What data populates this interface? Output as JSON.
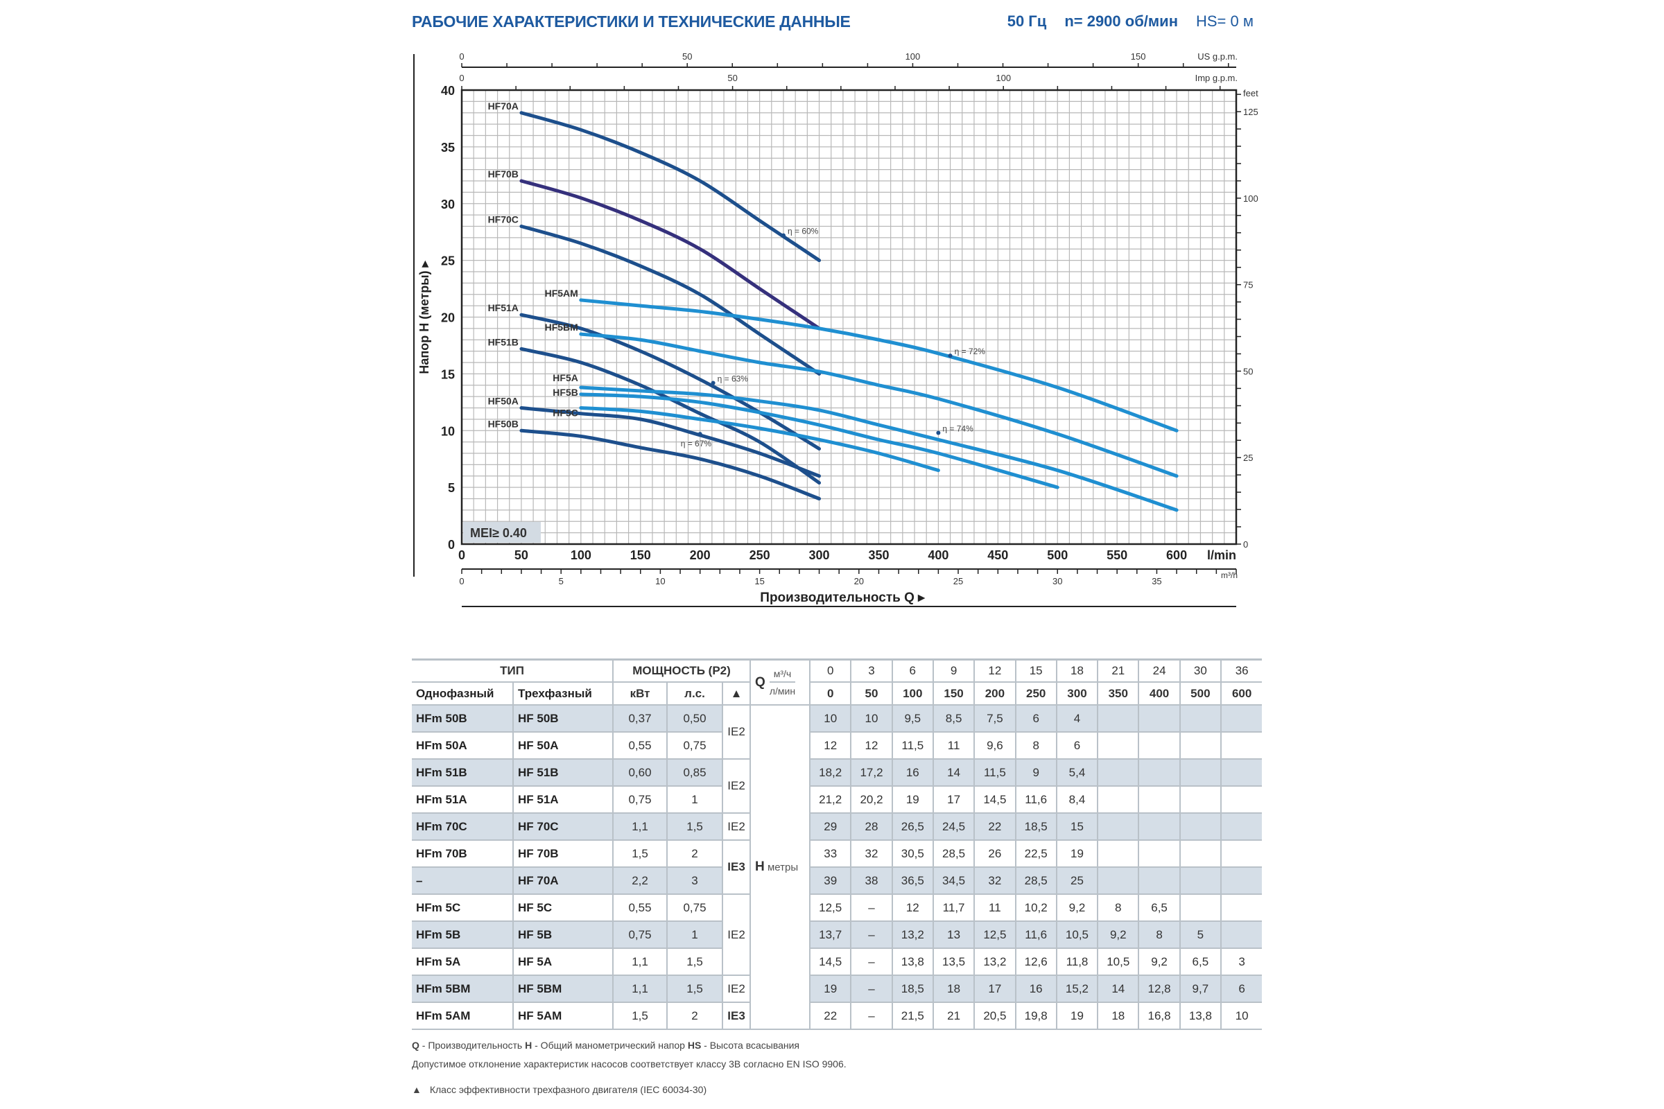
{
  "header": {
    "title": "РАБОЧИЕ ХАРАКТЕРИСТИКИ И ТЕХНИЧЕСКИЕ ДАННЫЕ",
    "frequency": "50 Гц",
    "speed": "n= 2900 об/мин",
    "suction": "HS= 0 м"
  },
  "chart_data": {
    "type": "line",
    "xlabel": "Производительность Q",
    "ylabel": "Напор H (метры)",
    "x_unit": "l/min",
    "xlim": [
      0,
      650
    ],
    "ylim": [
      0,
      40
    ],
    "grid": true,
    "x_ticks": [
      0,
      50,
      100,
      150,
      200,
      250,
      300,
      350,
      400,
      450,
      500,
      550,
      600
    ],
    "y_ticks": [
      0,
      5,
      10,
      15,
      20,
      25,
      30,
      35,
      40
    ],
    "secondary_axes": {
      "us_gpm": {
        "label": "US g.p.m.",
        "ticks": [
          0,
          50,
          100,
          150
        ]
      },
      "imp_gpm": {
        "label": "Imp g.p.m.",
        "ticks": [
          0,
          50,
          100
        ]
      },
      "m3h": {
        "label": "m³/h",
        "ticks": [
          0,
          5,
          10,
          15,
          20,
          25,
          30,
          35
        ]
      },
      "feet": {
        "label": "feet",
        "ticks": [
          0,
          25,
          50,
          75,
          100,
          125
        ]
      }
    },
    "badge": "MEI≥ 0.40",
    "colors": {
      "dark": "#1d4f8c",
      "purple": "#35307c",
      "light": "#1f8fd1"
    },
    "series": [
      {
        "name": "HF70A",
        "color": "#1d4f8c",
        "x": [
          50,
          100,
          150,
          200,
          250,
          300
        ],
        "y": [
          38,
          36.5,
          34.5,
          32,
          28.5,
          25
        ]
      },
      {
        "name": "HF70B",
        "color": "#35307c",
        "x": [
          50,
          100,
          150,
          200,
          250,
          300
        ],
        "y": [
          32,
          30.5,
          28.5,
          26,
          22.5,
          19
        ]
      },
      {
        "name": "HF70C",
        "color": "#1d4f8c",
        "x": [
          50,
          100,
          150,
          200,
          250,
          300
        ],
        "y": [
          28,
          26.5,
          24.5,
          22,
          18.5,
          15
        ]
      },
      {
        "name": "HF51A",
        "color": "#1d4f8c",
        "x": [
          50,
          100,
          150,
          200,
          250,
          300
        ],
        "y": [
          20.2,
          19,
          17,
          14.5,
          11.6,
          8.4
        ]
      },
      {
        "name": "HF51B",
        "color": "#1d4f8c",
        "x": [
          50,
          100,
          150,
          200,
          250,
          300
        ],
        "y": [
          17.2,
          16,
          14,
          11.5,
          9,
          5.4
        ]
      },
      {
        "name": "HF50A",
        "color": "#1d4f8c",
        "x": [
          50,
          100,
          150,
          200,
          250,
          300
        ],
        "y": [
          12,
          11.5,
          11,
          9.6,
          8,
          6
        ]
      },
      {
        "name": "HF50B",
        "color": "#1d4f8c",
        "x": [
          50,
          100,
          150,
          200,
          250,
          300
        ],
        "y": [
          10,
          9.5,
          8.5,
          7.5,
          6,
          4
        ]
      },
      {
        "name": "HF5AM",
        "color": "#1f8fd1",
        "x": [
          100,
          150,
          200,
          250,
          300,
          350,
          400,
          500,
          600
        ],
        "y": [
          21.5,
          21,
          20.5,
          19.8,
          19,
          18,
          16.8,
          13.8,
          10
        ]
      },
      {
        "name": "HF5BM",
        "color": "#1f8fd1",
        "x": [
          100,
          150,
          200,
          250,
          300,
          350,
          400,
          500,
          600
        ],
        "y": [
          18.5,
          18,
          17,
          16,
          15.2,
          14,
          12.8,
          9.7,
          6
        ]
      },
      {
        "name": "HF5A",
        "color": "#1f8fd1",
        "x": [
          100,
          150,
          200,
          250,
          300,
          350,
          400,
          500,
          600
        ],
        "y": [
          13.8,
          13.5,
          13.2,
          12.6,
          11.8,
          10.5,
          9.2,
          6.5,
          3
        ]
      },
      {
        "name": "HF5B",
        "color": "#1f8fd1",
        "x": [
          100,
          150,
          200,
          250,
          300,
          350,
          400,
          500
        ],
        "y": [
          13.2,
          13,
          12.5,
          11.6,
          10.5,
          9.2,
          8,
          5
        ]
      },
      {
        "name": "HF5C",
        "color": "#1f8fd1",
        "x": [
          100,
          150,
          200,
          250,
          300,
          350,
          400
        ],
        "y": [
          12,
          11.7,
          11,
          10.2,
          9.2,
          8,
          6.5
        ]
      }
    ],
    "annotations": [
      {
        "text": "η = 60%",
        "x": 270,
        "y": 27.2
      },
      {
        "text": "η = 63%",
        "x": 211,
        "y": 14.2
      },
      {
        "text": "η = 67%",
        "x": 200,
        "y": 9.7
      },
      {
        "text": "η = 72%",
        "x": 410,
        "y": 16.6
      },
      {
        "text": "η = 74%",
        "x": 400,
        "y": 9.8
      }
    ]
  },
  "table": {
    "headers": {
      "type": "ТИП",
      "power": "МОЩНОСТЬ (P2)",
      "single": "Однофазный",
      "three": "Трехфазный",
      "kw": "кВт",
      "hp": "л.с.",
      "ie_mark": "▲",
      "q": "Q",
      "q_unit_m3h": "м³/ч",
      "q_unit_lmin": "л/мин",
      "h": "H",
      "h_unit": "метры"
    },
    "q_m3h": [
      "0",
      "3",
      "6",
      "9",
      "12",
      "15",
      "18",
      "21",
      "24",
      "30",
      "36"
    ],
    "q_lmin": [
      "0",
      "50",
      "100",
      "150",
      "200",
      "250",
      "300",
      "350",
      "400",
      "500",
      "600"
    ],
    "rows": [
      {
        "single": "HFm 50B",
        "three": "HF 50B",
        "kw": "0,37",
        "hp": "0,50",
        "h": [
          "10",
          "10",
          "9,5",
          "8,5",
          "7,5",
          "6",
          "4",
          "",
          "",
          "",
          ""
        ]
      },
      {
        "single": "HFm 50A",
        "three": "HF 50A",
        "kw": "0,55",
        "hp": "0,75",
        "h": [
          "12",
          "12",
          "11,5",
          "11",
          "9,6",
          "8",
          "6",
          "",
          "",
          "",
          ""
        ]
      },
      {
        "single": "HFm 51B",
        "three": "HF 51B",
        "kw": "0,60",
        "hp": "0,85",
        "h": [
          "18,2",
          "17,2",
          "16",
          "14",
          "11,5",
          "9",
          "5,4",
          "",
          "",
          "",
          ""
        ]
      },
      {
        "single": "HFm 51A",
        "three": "HF 51A",
        "kw": "0,75",
        "hp": "1",
        "h": [
          "21,2",
          "20,2",
          "19",
          "17",
          "14,5",
          "11,6",
          "8,4",
          "",
          "",
          "",
          ""
        ]
      },
      {
        "single": "HFm 70C",
        "three": "HF 70C",
        "kw": "1,1",
        "hp": "1,5",
        "h": [
          "29",
          "28",
          "26,5",
          "24,5",
          "22",
          "18,5",
          "15",
          "",
          "",
          "",
          ""
        ]
      },
      {
        "single": "HFm 70B",
        "three": "HF 70B",
        "kw": "1,5",
        "hp": "2",
        "h": [
          "33",
          "32",
          "30,5",
          "28,5",
          "26",
          "22,5",
          "19",
          "",
          "",
          "",
          ""
        ]
      },
      {
        "single": "–",
        "three": "HF 70A",
        "kw": "2,2",
        "hp": "3",
        "h": [
          "39",
          "38",
          "36,5",
          "34,5",
          "32",
          "28,5",
          "25",
          "",
          "",
          "",
          ""
        ]
      },
      {
        "single": "HFm 5C",
        "three": "HF 5C",
        "kw": "0,55",
        "hp": "0,75",
        "h": [
          "12,5",
          "–",
          "12",
          "11,7",
          "11",
          "10,2",
          "9,2",
          "8",
          "6,5",
          "",
          ""
        ]
      },
      {
        "single": "HFm 5B",
        "three": "HF 5B",
        "kw": "0,75",
        "hp": "1",
        "h": [
          "13,7",
          "–",
          "13,2",
          "13",
          "12,5",
          "11,6",
          "10,5",
          "9,2",
          "8",
          "5",
          ""
        ]
      },
      {
        "single": "HFm 5A",
        "three": "HF 5A",
        "kw": "1,1",
        "hp": "1,5",
        "h": [
          "14,5",
          "–",
          "13,8",
          "13,5",
          "13,2",
          "12,6",
          "11,8",
          "10,5",
          "9,2",
          "6,5",
          "3"
        ]
      },
      {
        "single": "HFm 5BM",
        "three": "HF 5BM",
        "kw": "1,1",
        "hp": "1,5",
        "h": [
          "19",
          "–",
          "18,5",
          "18",
          "17",
          "16",
          "15,2",
          "14",
          "12,8",
          "9,7",
          "6"
        ]
      },
      {
        "single": "HFm 5AM",
        "three": "HF 5AM",
        "kw": "1,5",
        "hp": "2",
        "h": [
          "22",
          "–",
          "21,5",
          "21",
          "20,5",
          "19,8",
          "19",
          "18",
          "16,8",
          "13,8",
          "10"
        ]
      }
    ],
    "ie_groups": [
      {
        "label": "IE2",
        "rows": 2,
        "bold": false
      },
      {
        "label": "IE2",
        "rows": 2,
        "bold": false
      },
      {
        "label": "IE2",
        "rows": 1,
        "bold": false
      },
      {
        "label": "IE3",
        "rows": 2,
        "bold": true
      },
      {
        "label": "IE2",
        "rows": 3,
        "bold": false
      },
      {
        "label": "IE2",
        "rows": 1,
        "bold": false
      },
      {
        "label": "IE3",
        "rows": 1,
        "bold": true
      }
    ]
  },
  "footnotes": {
    "q_key": "Q",
    "q_text": " - Производительность ",
    "h_key": "H",
    "h_text": " - Общий манометрический напор ",
    "hs_key": "HS",
    "hs_text": " - Высота всасывания",
    "tolerance": "Допустимое отклонение характеристик насосов соответствует классу 3B согласно EN ISO 9906.",
    "ie_mark": "▲",
    "ie_text": "Класс эффективности трехфазного двигателя (IEC 60034-30)"
  }
}
